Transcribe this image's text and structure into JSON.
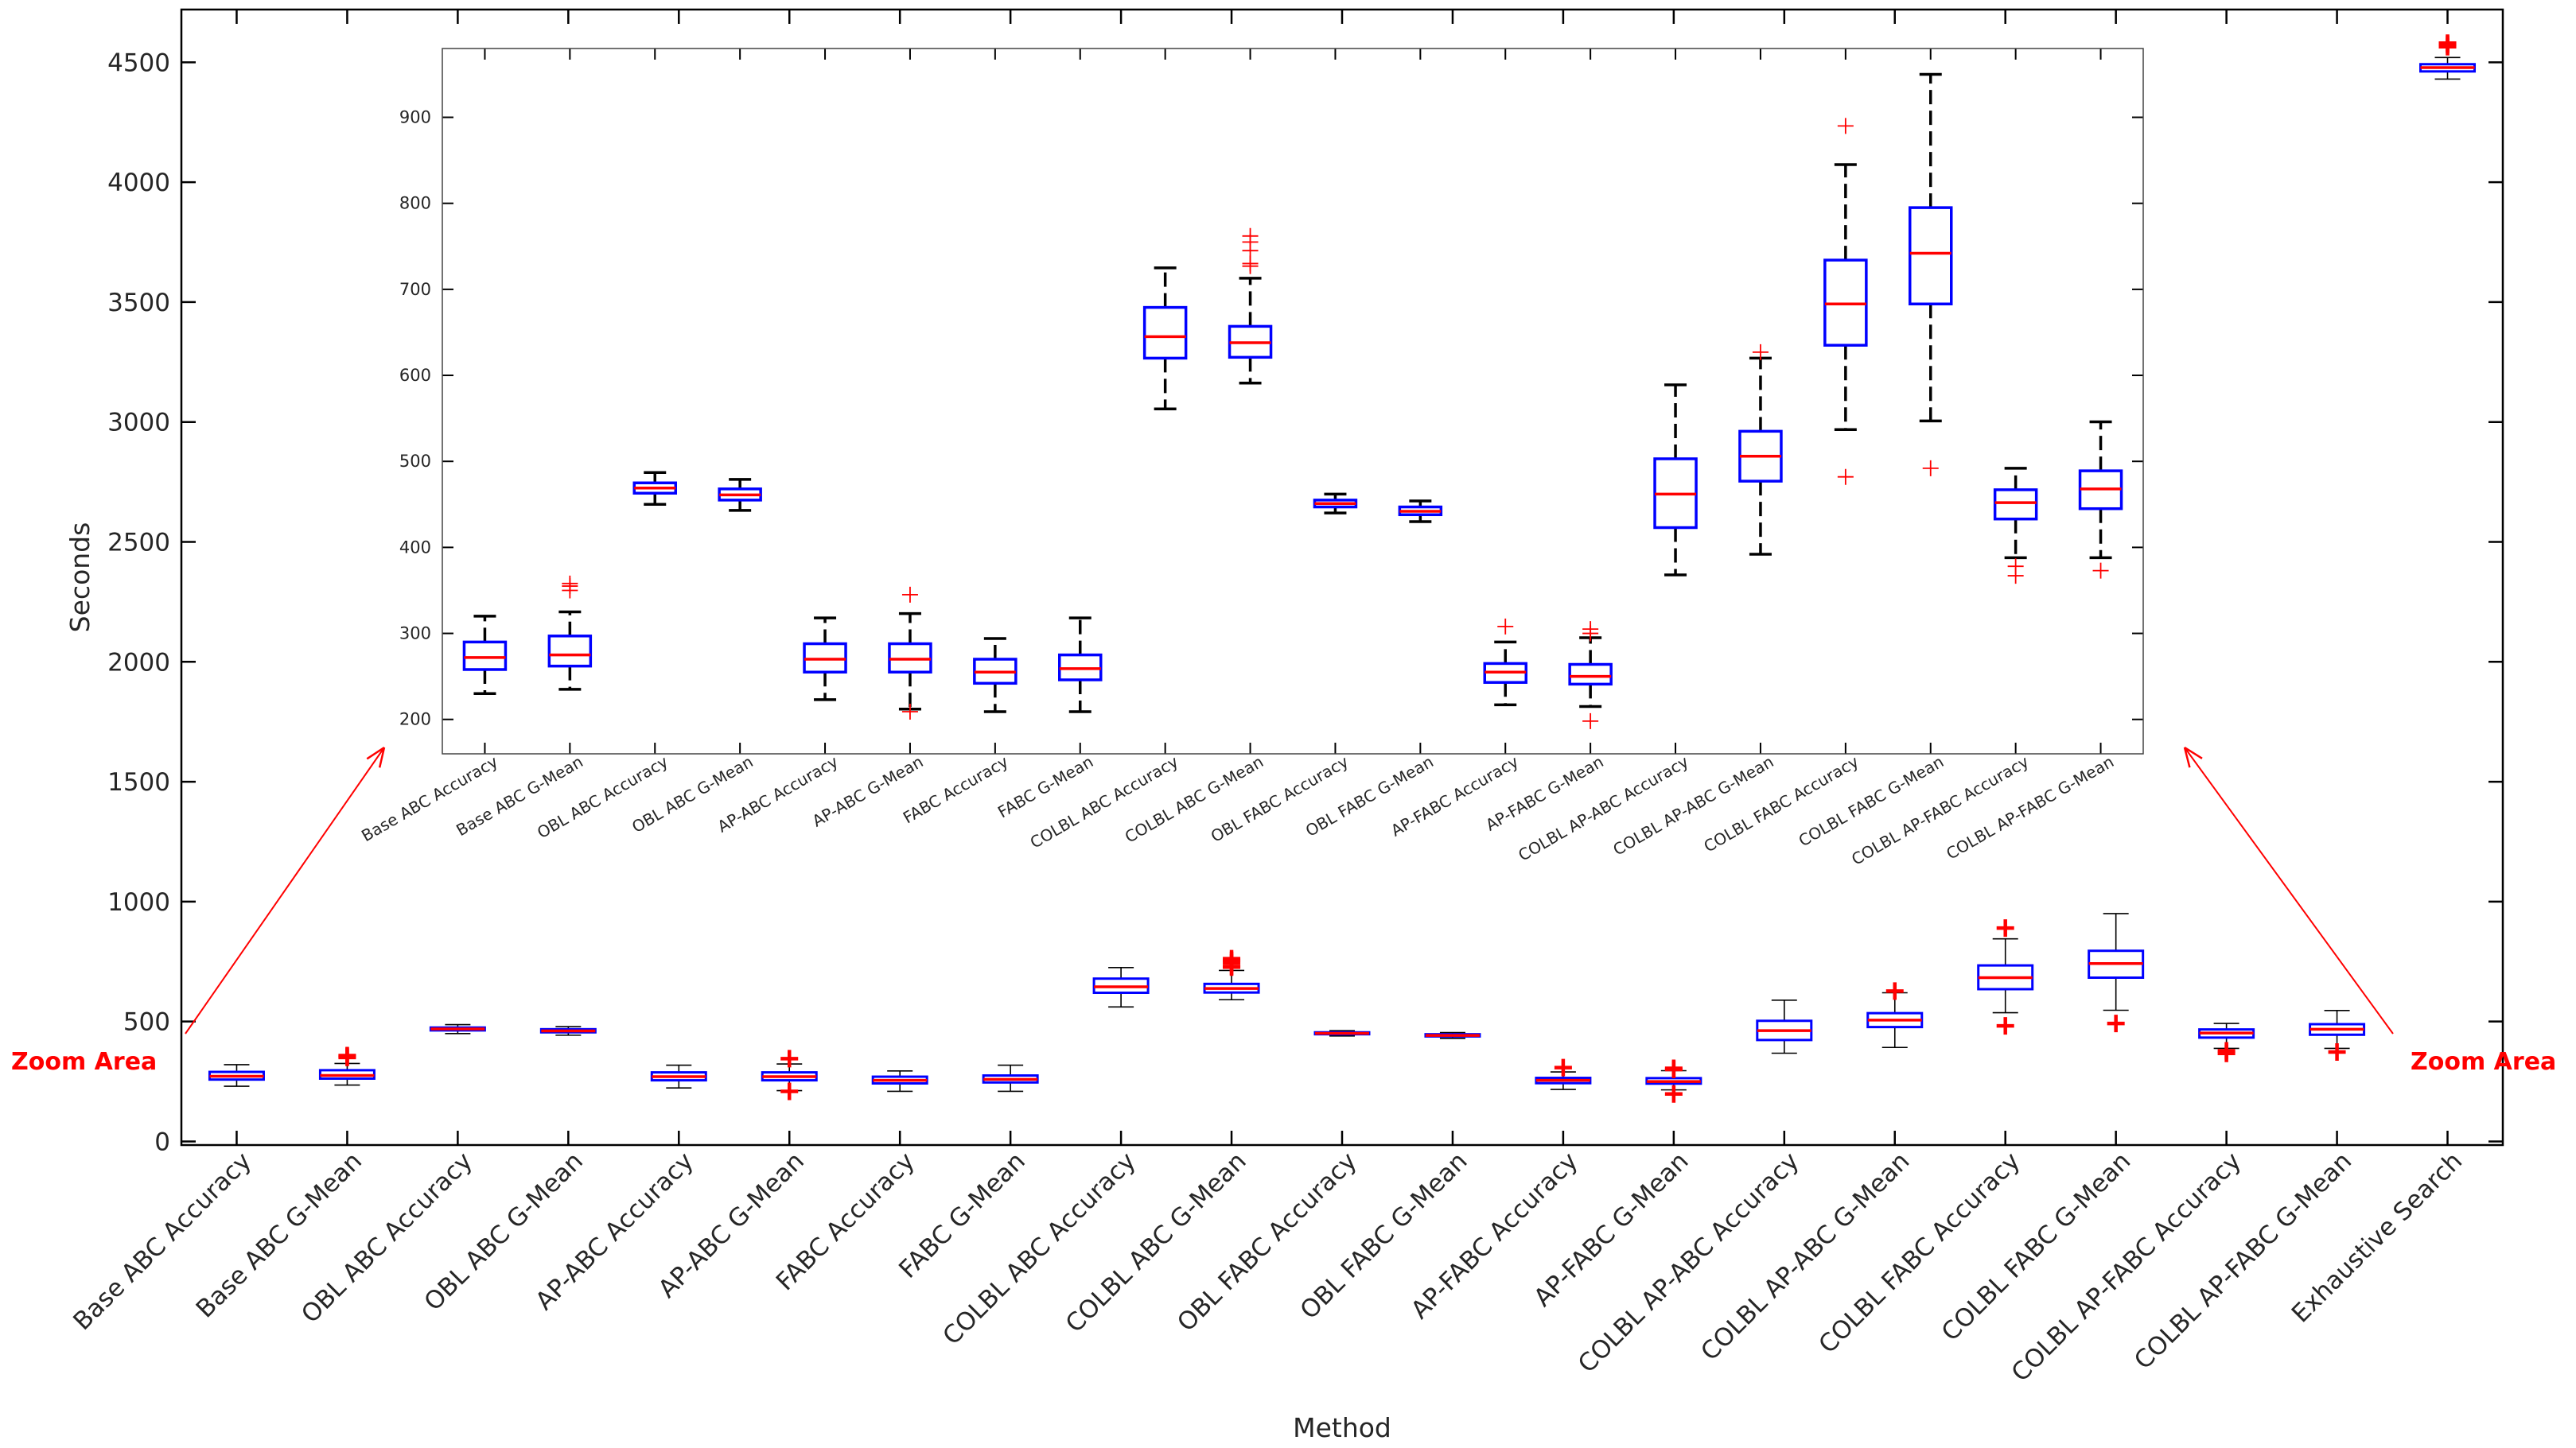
{
  "chart_data": [
    {
      "id": "main",
      "type": "box",
      "xlabel": "Method",
      "ylabel": "Seconds",
      "ylim": [
        -15,
        4720
      ],
      "yticks": [
        0,
        500,
        1000,
        1500,
        2000,
        2500,
        3000,
        3500,
        4000,
        4500
      ],
      "categories": [
        "Base ABC Accuracy",
        "Base ABC G-Mean",
        "OBL ABC Accuracy",
        "OBL ABC G-Mean",
        "AP-ABC Accuracy",
        "AP-ABC G-Mean",
        "FABC Accuracy",
        "FABC G-Mean",
        "COLBL ABC Accuracy",
        "COLBL ABC G-Mean",
        "OBL FABC Accuracy",
        "OBL FABC G-Mean",
        "AP-FABC Accuracy",
        "AP-FABC G-Mean",
        "COLBL AP-ABC Accuracy",
        "COLBL AP-ABC G-Mean",
        "COLBL FABC Accuracy",
        "COLBL FABC G-Mean",
        "COLBL AP-FABC Accuracy",
        "COLBL AP-FABC G-Mean",
        "Exhaustive Search"
      ],
      "boxes": [
        {
          "wlo": 230,
          "q1": 258,
          "med": 272,
          "q3": 290,
          "whi": 320,
          "out": []
        },
        {
          "wlo": 235,
          "q1": 262,
          "med": 275,
          "q3": 297,
          "whi": 325,
          "out": [
            350,
            355,
            358
          ]
        },
        {
          "wlo": 450,
          "q1": 463,
          "med": 469,
          "q3": 475,
          "whi": 487,
          "out": []
        },
        {
          "wlo": 443,
          "q1": 455,
          "med": 461,
          "q3": 468,
          "whi": 479,
          "out": []
        },
        {
          "wlo": 223,
          "q1": 255,
          "med": 270,
          "q3": 288,
          "whi": 318,
          "out": []
        },
        {
          "wlo": 212,
          "q1": 255,
          "med": 270,
          "q3": 288,
          "whi": 323,
          "out": [
            345,
            209
          ]
        },
        {
          "wlo": 209,
          "q1": 242,
          "med": 255,
          "q3": 270,
          "whi": 294,
          "out": []
        },
        {
          "wlo": 209,
          "q1": 246,
          "med": 259,
          "q3": 275,
          "whi": 318,
          "out": []
        },
        {
          "wlo": 561,
          "q1": 620,
          "med": 645,
          "q3": 679,
          "whi": 725,
          "out": []
        },
        {
          "wlo": 591,
          "q1": 621,
          "med": 638,
          "q3": 657,
          "whi": 713,
          "out": [
            727,
            730,
            745,
            755,
            762
          ]
        },
        {
          "wlo": 440,
          "q1": 447,
          "med": 451,
          "q3": 455,
          "whi": 462,
          "out": []
        },
        {
          "wlo": 430,
          "q1": 438,
          "med": 442,
          "q3": 447,
          "whi": 454,
          "out": []
        },
        {
          "wlo": 217,
          "q1": 243,
          "med": 255,
          "q3": 265,
          "whi": 290,
          "out": [
            308
          ]
        },
        {
          "wlo": 215,
          "q1": 241,
          "med": 250,
          "q3": 264,
          "whi": 295,
          "out": [
            305,
            300,
            198
          ]
        },
        {
          "wlo": 368,
          "q1": 423,
          "med": 462,
          "q3": 503,
          "whi": 589,
          "out": []
        },
        {
          "wlo": 392,
          "q1": 477,
          "med": 506,
          "q3": 535,
          "whi": 620,
          "out": [
            627
          ]
        },
        {
          "wlo": 537,
          "q1": 635,
          "med": 683,
          "q3": 734,
          "whi": 845,
          "out": [
            890,
            482
          ]
        },
        {
          "wlo": 547,
          "q1": 683,
          "med": 742,
          "q3": 795,
          "whi": 950,
          "out": [
            492
          ]
        },
        {
          "wlo": 388,
          "q1": 433,
          "med": 452,
          "q3": 467,
          "whi": 492,
          "out": [
            378,
            367
          ]
        },
        {
          "wlo": 388,
          "q1": 445,
          "med": 468,
          "q3": 489,
          "whi": 546,
          "out": [
            373
          ]
        },
        {
          "wlo": 4430,
          "q1": 4462,
          "med": 4478,
          "q3": 4492,
          "whi": 4520,
          "out": [
            4565,
            4575,
            4580
          ]
        }
      ]
    },
    {
      "id": "inset",
      "type": "box",
      "title": "",
      "ylim": [
        160,
        980
      ],
      "yticks": [
        200,
        300,
        400,
        500,
        600,
        700,
        800,
        900
      ],
      "categories": [
        "Base ABC Accuracy",
        "Base ABC G-Mean",
        "OBL ABC Accuracy",
        "OBL ABC G-Mean",
        "AP-ABC Accuracy",
        "AP-ABC G-Mean",
        "FABC Accuracy",
        "FABC G-Mean",
        "COLBL ABC Accuracy",
        "COLBL ABC G-Mean",
        "OBL FABC Accuracy",
        "OBL FABC G-Mean",
        "AP-FABC Accuracy",
        "AP-FABC G-Mean",
        "COLBL AP-ABC Accuracy",
        "COLBL AP-ABC G-Mean",
        "COLBL FABC Accuracy",
        "COLBL FABC G-Mean",
        "COLBL AP-FABC Accuracy",
        "COLBL AP-FABC G-Mean"
      ]
    }
  ],
  "annotations": {
    "left": "Zoom Area",
    "right": "Zoom Area"
  },
  "colors": {
    "box": "#0000ff",
    "median": "#ff0000",
    "outlier": "#ff0000",
    "whisker": "#000000",
    "axis": "#000000",
    "arrow": "#ff0000"
  }
}
